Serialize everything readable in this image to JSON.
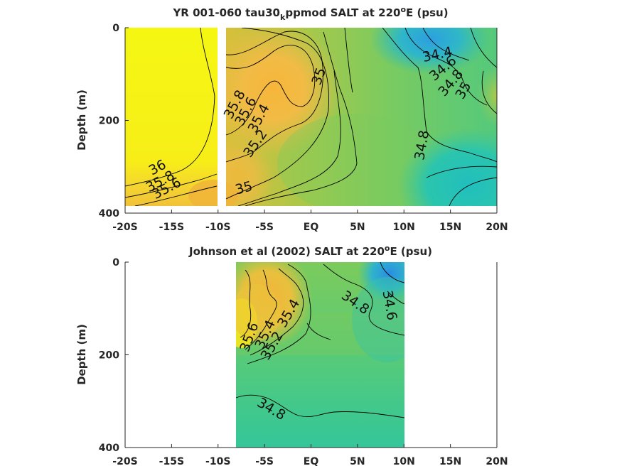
{
  "chart_data": [
    {
      "type": "heatmap",
      "title": {
        "prefix": "YR 001-060 tau30",
        "sub": "k",
        "mid": "ppmod SALT at 220",
        "sup": "o",
        "suffix": "E (psu)"
      },
      "ylabel": "Depth (m)",
      "xlim": [
        -20,
        20
      ],
      "ylim": [
        0,
        400
      ],
      "y_reversed": true,
      "x_ticks": [
        "-20S",
        "-15S",
        "-10S",
        "-5S",
        "EQ",
        "5N",
        "10N",
        "15N",
        "20N"
      ],
      "y_ticks": [
        "0",
        "200",
        "400"
      ],
      "data_x_range": [
        -20,
        20
      ],
      "data_depth_range": [
        0,
        380
      ],
      "missing_x_range": [
        -10,
        -9
      ],
      "contour_labels": [
        {
          "text": "36",
          "x": -16.3,
          "depth": 310,
          "angle": -28
        },
        {
          "text": "35.8",
          "x": -16.0,
          "depth": 340,
          "angle": -28
        },
        {
          "text": "35.6",
          "x": -15.3,
          "depth": 355,
          "angle": -28
        },
        {
          "text": "35.8",
          "x": -7.8,
          "depth": 170,
          "angle": -62
        },
        {
          "text": "35.6",
          "x": -6.6,
          "depth": 185,
          "angle": -62
        },
        {
          "text": "35.4",
          "x": -5.2,
          "depth": 200,
          "angle": -62
        },
        {
          "text": "35.2",
          "x": -5.6,
          "depth": 255,
          "angle": -55
        },
        {
          "text": "35",
          "x": -7.1,
          "depth": 355,
          "angle": -15
        },
        {
          "text": "35",
          "x": 1.3,
          "depth": 108,
          "angle": -70
        },
        {
          "text": "34.8",
          "x": 12.4,
          "depth": 255,
          "angle": -80
        },
        {
          "text": "34.4",
          "x": 13.7,
          "depth": 67,
          "angle": -12
        },
        {
          "text": "34.6",
          "x": 14.5,
          "depth": 95,
          "angle": -40
        },
        {
          "text": "34.8",
          "x": 15.4,
          "depth": 125,
          "angle": -50
        },
        {
          "text": "35",
          "x": 16.8,
          "depth": 140,
          "angle": -60
        }
      ]
    },
    {
      "type": "heatmap",
      "title": {
        "prefix": "Johnson et al (2002) SALT at 220",
        "sup": "o",
        "suffix": "E (psu)"
      },
      "ylabel": "Depth (m)",
      "xlim": [
        -20,
        20
      ],
      "ylim": [
        0,
        400
      ],
      "y_reversed": true,
      "x_ticks": [
        "-20S",
        "-15S",
        "-10S",
        "-5S",
        "EQ",
        "5N",
        "10N",
        "15N",
        "20N"
      ],
      "y_ticks": [
        "0",
        "200",
        "400"
      ],
      "data_x_range": [
        -8,
        10
      ],
      "data_depth_range": [
        0,
        400
      ],
      "contour_labels": [
        {
          "text": "35.6",
          "x": -6.2,
          "depth": 165,
          "angle": -70
        },
        {
          "text": "35.4",
          "x": -4.5,
          "depth": 160,
          "angle": -65
        },
        {
          "text": "35.2",
          "x": -3.8,
          "depth": 185,
          "angle": -60
        },
        {
          "text": "35.4",
          "x": -2.0,
          "depth": 115,
          "angle": -60
        },
        {
          "text": "34.8",
          "x": 4.5,
          "depth": 95,
          "angle": 35
        },
        {
          "text": "34.6",
          "x": 8.0,
          "depth": 95,
          "angle": 80
        },
        {
          "text": "34.8",
          "x": -4.5,
          "depth": 325,
          "angle": 30
        }
      ]
    }
  ]
}
